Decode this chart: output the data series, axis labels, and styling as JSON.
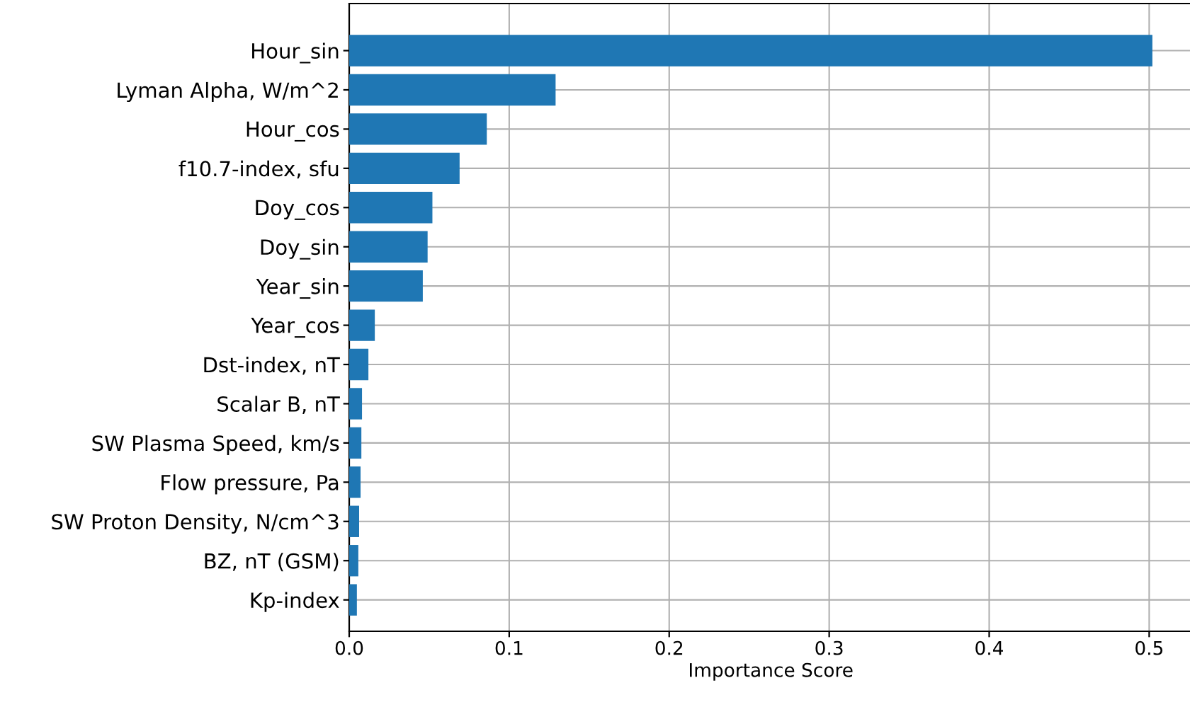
{
  "chart_data": {
    "type": "bar",
    "orientation": "horizontal",
    "xlabel": "Importance Score",
    "categories": [
      "Hour_sin",
      "Lyman Alpha, W/m^2",
      "Hour_cos",
      "f10.7-index, sfu",
      "Doy_cos",
      "Doy_sin",
      "Year_sin",
      "Year_cos",
      "Dst-index, nT",
      "Scalar B, nT",
      "SW Plasma Speed, km/s",
      "Flow pressure, Pa",
      "SW Proton Density, N/cm^3",
      "BZ, nT (GSM)",
      "Kp-index"
    ],
    "values": [
      0.502,
      0.129,
      0.086,
      0.069,
      0.052,
      0.049,
      0.046,
      0.016,
      0.012,
      0.008,
      0.0076,
      0.0071,
      0.0062,
      0.0057,
      0.0048
    ],
    "color": "#1f77b4",
    "xlim": [
      0,
      0.527
    ],
    "xticks": [
      {
        "value": 0,
        "label": "0.0"
      },
      0.1,
      0.2,
      0.3,
      0.4,
      0.5
    ],
    "grid": true
  }
}
